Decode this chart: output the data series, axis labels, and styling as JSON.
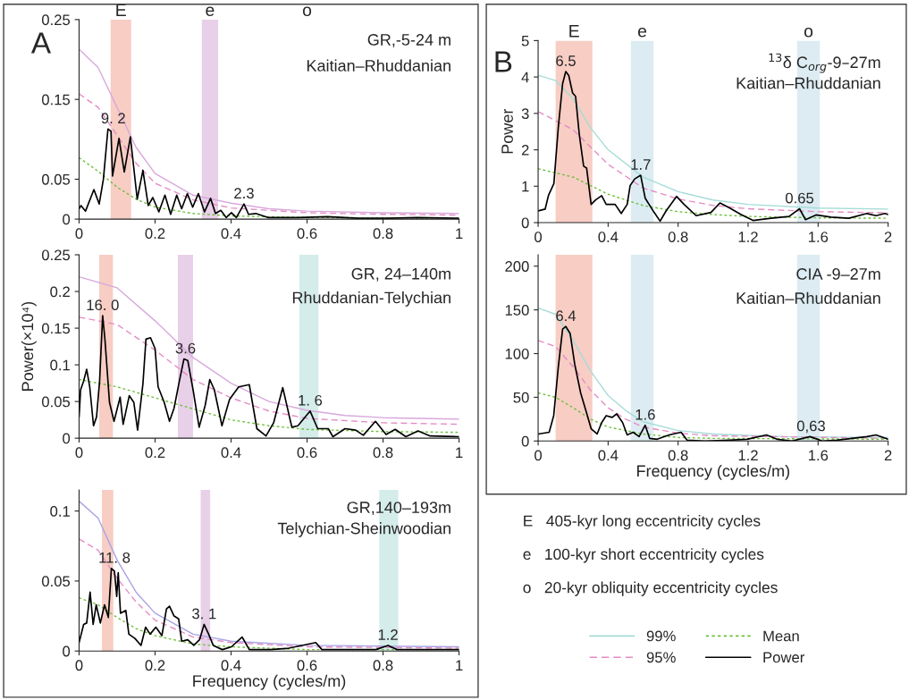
{
  "chart_data": [
    {
      "type": "line",
      "title": "GR,-5-24 m",
      "subtitle": "Kaitian–Rhuddanian",
      "xlim": [
        0,
        1
      ],
      "xticks": [
        0,
        0.2,
        0.4,
        0.6,
        0.8,
        1
      ],
      "ylim": [
        0,
        0.25
      ],
      "yticks": [
        0,
        0.05,
        0.15,
        0.25
      ],
      "grid": false,
      "bands": [
        {
          "axis": "x",
          "from": 0.083,
          "to": 0.137,
          "label": "E",
          "color": "#f7cdc4"
        },
        {
          "axis": "x",
          "from": 0.323,
          "to": 0.366,
          "label": "e",
          "color": "#e8d0e8"
        }
      ],
      "annotations": [
        "A",
        "o",
        {
          "text": "9. 2",
          "x": 0.09,
          "y": 0.113
        },
        {
          "text": "2.3",
          "x": 0.434,
          "y": 0.019
        }
      ],
      "series": [
        {
          "color": "#d8a8dc",
          "line_style": "solid",
          "x": [
            0,
            0.05,
            0.1,
            0.15,
            0.2,
            0.3,
            0.4,
            0.5,
            0.6,
            0.8,
            1
          ],
          "values": [
            0.213,
            0.19,
            0.14,
            0.09,
            0.057,
            0.03,
            0.02,
            0.013,
            0.01,
            0.008,
            0.007
          ]
        },
        {
          "color": "#e48cc4",
          "line_style": "dashed",
          "x": [
            0,
            0.05,
            0.1,
            0.15,
            0.2,
            0.3,
            0.4,
            0.6,
            0.8,
            1
          ],
          "values": [
            0.157,
            0.14,
            0.105,
            0.07,
            0.045,
            0.024,
            0.014,
            0.008,
            0.006,
            0.005
          ]
        },
        {
          "color": "#6cbf3a",
          "line_style": "dotted",
          "x": [
            0,
            0.05,
            0.1,
            0.15,
            0.2,
            0.3,
            0.4,
            0.6,
            1
          ],
          "values": [
            0.077,
            0.06,
            0.04,
            0.025,
            0.015,
            0.007,
            0.004,
            0.002,
            0.001
          ]
        },
        {
          "color": "#000000",
          "line_style": "solid",
          "x": [
            0,
            0.005,
            0.017,
            0.039,
            0.053,
            0.064,
            0.076,
            0.084,
            0.088,
            0.105,
            0.119,
            0.135,
            0.153,
            0.168,
            0.182,
            0.194,
            0.21,
            0.226,
            0.241,
            0.257,
            0.27,
            0.285,
            0.299,
            0.314,
            0.33,
            0.346,
            0.359,
            0.373,
            0.387,
            0.401,
            0.414,
            0.434,
            0.446,
            0.465,
            0.497,
            0.575,
            0.654,
            0.733,
            0.811,
            0.89,
            1
          ],
          "values": [
            0.013,
            0.017,
            0.01,
            0.037,
            0.019,
            0.05,
            0.113,
            0.11,
            0.054,
            0.101,
            0.059,
            0.103,
            0.025,
            0.061,
            0.017,
            0.027,
            0.009,
            0.03,
            0.006,
            0.03,
            0.013,
            0.032,
            0.015,
            0.032,
            0.009,
            0.026,
            0.007,
            0.011,
            0.002,
            0.008,
            0.002,
            0.019,
            0.006,
            0.007,
            0.002,
            0.002,
            0.003,
            0.001,
            0.001,
            0.002,
            0.001
          ]
        }
      ]
    },
    {
      "type": "line",
      "title": "GR, 24–140m",
      "subtitle": "Rhuddanian-Telychian",
      "ylabel": "Power(×10⁴)",
      "xlim": [
        0,
        1
      ],
      "xticks": [
        0,
        0.2,
        0.4,
        0.6,
        0.8,
        1
      ],
      "ylim": [
        0,
        0.25
      ],
      "yticks": [
        0,
        0.05,
        0.1,
        0.15,
        0.2,
        0.25
      ],
      "grid": false,
      "bands": [
        {
          "axis": "x",
          "from": 0.053,
          "to": 0.089,
          "color": "#f7cdc4"
        },
        {
          "axis": "x",
          "from": 0.26,
          "to": 0.3,
          "color": "#e8d0e8"
        },
        {
          "axis": "x",
          "from": 0.58,
          "to": 0.63,
          "color": "#d4ecea"
        }
      ],
      "annotations": [
        {
          "text": "16. 0",
          "x": 0.062,
          "y": 0.167
        },
        {
          "text": "3.6",
          "x": 0.28,
          "y": 0.108
        },
        {
          "text": "1. 6",
          "x": 0.608,
          "y": 0.037
        }
      ],
      "series": [
        {
          "color": "#d8a8dc",
          "line_style": "solid",
          "x": [
            0,
            0.1,
            0.2,
            0.3,
            0.4,
            0.5,
            0.6,
            0.7,
            0.8,
            1
          ],
          "values": [
            0.22,
            0.205,
            0.16,
            0.11,
            0.075,
            0.05,
            0.038,
            0.031,
            0.028,
            0.026
          ]
        },
        {
          "color": "#e48cc4",
          "line_style": "dashed",
          "x": [
            0,
            0.1,
            0.2,
            0.3,
            0.4,
            0.5,
            0.6,
            0.8,
            1
          ],
          "values": [
            0.165,
            0.155,
            0.12,
            0.08,
            0.055,
            0.037,
            0.027,
            0.021,
            0.019
          ]
        },
        {
          "color": "#6cbf3a",
          "line_style": "dotted",
          "x": [
            0,
            0.1,
            0.2,
            0.3,
            0.4,
            0.5,
            0.6,
            0.8,
            1
          ],
          "values": [
            0.08,
            0.07,
            0.055,
            0.04,
            0.025,
            0.017,
            0.012,
            0.009,
            0.008
          ]
        },
        {
          "color": "#000000",
          "line_style": "solid",
          "x": [
            0,
            0.004,
            0.012,
            0.02,
            0.028,
            0.038,
            0.046,
            0.054,
            0.062,
            0.068,
            0.08,
            0.092,
            0.108,
            0.116,
            0.132,
            0.144,
            0.154,
            0.168,
            0.176,
            0.188,
            0.2,
            0.208,
            0.224,
            0.238,
            0.25,
            0.264,
            0.276,
            0.286,
            0.3,
            0.316,
            0.332,
            0.344,
            0.356,
            0.376,
            0.396,
            0.42,
            0.448,
            0.468,
            0.492,
            0.512,
            0.536,
            0.56,
            0.576,
            0.608,
            0.628,
            0.656,
            0.668,
            0.7,
            0.728,
            0.748,
            0.78,
            0.808,
            0.832,
            0.86,
            0.892,
            0.924,
            1
          ],
          "values": [
            0.029,
            0.066,
            0.078,
            0.094,
            0.07,
            0.017,
            0.029,
            0.078,
            0.167,
            0.135,
            0.049,
            0.023,
            0.056,
            0.019,
            0.058,
            0.049,
            0.011,
            0.074,
            0.135,
            0.137,
            0.122,
            0.07,
            0.049,
            0.023,
            0.041,
            0.078,
            0.108,
            0.106,
            0.066,
            0.015,
            0.045,
            0.08,
            0.066,
            0.017,
            0.053,
            0.07,
            0.073,
            0.013,
            0.003,
            0.021,
            0.069,
            0.015,
            0.017,
            0.037,
            0.013,
            0.013,
            0.002,
            0.013,
            0.011,
            0.004,
            0.023,
            0.005,
            0.012,
            0.002,
            0.01,
            0.003,
            0.002
          ]
        }
      ]
    },
    {
      "type": "line",
      "title": "GR,140–193m",
      "subtitle": "Telychian-Sheinwoodian",
      "xlabel": "Frequency (cycles/m)",
      "xlim": [
        0,
        1
      ],
      "xticks": [
        0,
        0.2,
        0.4,
        0.6,
        0.8,
        1
      ],
      "ylim": [
        0,
        0.115
      ],
      "yticks": [
        0,
        0.05,
        0.1
      ],
      "grid": false,
      "bands": [
        {
          "axis": "x",
          "from": 0.06,
          "to": 0.09,
          "color": "#f7cdc4"
        },
        {
          "axis": "x",
          "from": 0.32,
          "to": 0.345,
          "color": "#e8d0e8"
        },
        {
          "axis": "x",
          "from": 0.79,
          "to": 0.84,
          "color": "#d4ecea"
        }
      ],
      "annotations": [
        {
          "text": "11. 8",
          "x": 0.093,
          "y": 0.059
        },
        {
          "text": "3. 1",
          "x": 0.329,
          "y": 0.019
        },
        {
          "text": "1.2",
          "x": 0.813,
          "y": 0.004
        }
      ],
      "series": [
        {
          "color": "#a9a3e3",
          "line_style": "solid",
          "x": [
            0,
            0.05,
            0.1,
            0.15,
            0.2,
            0.3,
            0.4,
            0.6,
            1
          ],
          "values": [
            0.107,
            0.095,
            0.065,
            0.042,
            0.027,
            0.012,
            0.007,
            0.004,
            0.003
          ]
        },
        {
          "color": "#e48cc4",
          "line_style": "dashed",
          "x": [
            0,
            0.05,
            0.1,
            0.15,
            0.2,
            0.3,
            0.4,
            0.6,
            1
          ],
          "values": [
            0.08,
            0.072,
            0.052,
            0.035,
            0.022,
            0.01,
            0.006,
            0.003,
            0.002
          ]
        },
        {
          "color": "#6cbf3a",
          "line_style": "dotted",
          "x": [
            0,
            0.05,
            0.1,
            0.15,
            0.2,
            0.3,
            0.4,
            0.6,
            1
          ],
          "values": [
            0.038,
            0.033,
            0.024,
            0.016,
            0.011,
            0.005,
            0.003,
            0.001,
            0.001
          ]
        },
        {
          "color": "#000000",
          "line_style": "solid",
          "x": [
            0,
            0.012,
            0.02,
            0.029,
            0.037,
            0.045,
            0.056,
            0.067,
            0.077,
            0.085,
            0.093,
            0.099,
            0.103,
            0.109,
            0.123,
            0.131,
            0.147,
            0.163,
            0.175,
            0.187,
            0.202,
            0.218,
            0.23,
            0.238,
            0.25,
            0.262,
            0.27,
            0.286,
            0.302,
            0.317,
            0.329,
            0.341,
            0.353,
            0.377,
            0.401,
            0.429,
            0.448,
            0.504,
            0.552,
            0.623,
            0.639,
            0.702,
            0.781,
            0.813,
            0.837,
            0.9,
            1
          ],
          "values": [
            0.006,
            0.019,
            0.02,
            0.042,
            0.019,
            0.033,
            0.02,
            0.033,
            0.024,
            0.059,
            0.057,
            0.039,
            0.056,
            0.027,
            0.029,
            0.012,
            0.009,
            0.004,
            0.017,
            0.012,
            0.017,
            0.011,
            0.03,
            0.032,
            0.025,
            0.023,
            0.007,
            0.008,
            0.004,
            0.008,
            0.019,
            0.012,
            0.004,
            0.001,
            0.003,
            0.01,
            0.001,
            0.001,
            0.002,
            0.006,
            0.001,
            0.001,
            0.001,
            0.004,
            0.001,
            0.001,
            0.001
          ]
        }
      ]
    },
    {
      "type": "line",
      "title": "$^{13}$δ C$_{org}$-9–27m",
      "subtitle": "Kaitian–Rhuddanian",
      "ylabel": "Power",
      "xlim": [
        0,
        2
      ],
      "xticks": [
        0,
        0.4,
        0.8,
        1.2,
        1.6,
        2
      ],
      "ylim": [
        0,
        5
      ],
      "yticks": [
        0,
        1,
        2,
        3,
        4,
        5
      ],
      "grid": false,
      "bands": [
        {
          "axis": "x",
          "from": 0.1,
          "to": 0.31,
          "label": "E",
          "color": "#f7cdc4"
        },
        {
          "axis": "x",
          "from": 0.53,
          "to": 0.66,
          "label": "e",
          "color": "#dcecf2"
        },
        {
          "axis": "x",
          "from": 1.48,
          "to": 1.61,
          "label": "o",
          "color": "#dcecf2"
        }
      ],
      "annotations": [
        "B",
        {
          "text": "6.5",
          "x": 0.158,
          "y": 4.15
        },
        {
          "text": "1.7",
          "x": 0.586,
          "y": 1.3
        },
        {
          "text": "0.65",
          "x": 1.494,
          "y": 0.38
        }
      ],
      "series": [
        {
          "color": "#a6dcd8",
          "line_style": "solid",
          "x": [
            0,
            0.1,
            0.2,
            0.3,
            0.4,
            0.6,
            0.8,
            1.0,
            1.2,
            1.6,
            2
          ],
          "values": [
            4.05,
            3.9,
            3.4,
            2.6,
            2.0,
            1.25,
            0.85,
            0.62,
            0.5,
            0.4,
            0.37
          ]
        },
        {
          "color": "#e48cc4",
          "line_style": "dashed",
          "x": [
            0,
            0.2,
            0.4,
            0.6,
            0.8,
            1.0,
            1.2,
            1.6,
            2
          ],
          "values": [
            3.05,
            2.55,
            1.6,
            0.95,
            0.65,
            0.47,
            0.38,
            0.3,
            0.27
          ]
        },
        {
          "color": "#6cbf3a",
          "line_style": "dotted",
          "x": [
            0,
            0.2,
            0.4,
            0.6,
            0.8,
            1.0,
            1.2,
            1.6,
            2
          ],
          "values": [
            1.48,
            1.25,
            0.78,
            0.47,
            0.3,
            0.22,
            0.17,
            0.13,
            0.12
          ]
        },
        {
          "color": "#000000",
          "line_style": "solid",
          "x": [
            0,
            0.04,
            0.06,
            0.09,
            0.115,
            0.14,
            0.158,
            0.175,
            0.197,
            0.214,
            0.235,
            0.26,
            0.277,
            0.303,
            0.33,
            0.363,
            0.389,
            0.44,
            0.475,
            0.509,
            0.526,
            0.552,
            0.586,
            0.612,
            0.663,
            0.697,
            0.731,
            0.791,
            0.834,
            0.903,
            0.988,
            1.039,
            1.091,
            1.16,
            1.228,
            1.331,
            1.434,
            1.494,
            1.528,
            1.588,
            1.674,
            1.776,
            1.879,
            1.931,
            1.982,
            2
          ],
          "values": [
            0.32,
            0.37,
            0.76,
            1.07,
            2.6,
            3.82,
            4.15,
            4.04,
            3.56,
            3.47,
            2.43,
            1.55,
            1.5,
            0.5,
            0.63,
            0.74,
            0.5,
            0.5,
            0.25,
            0.5,
            1.02,
            1.2,
            1.3,
            0.67,
            0.28,
            0.04,
            0.32,
            0.72,
            0.5,
            0.19,
            0.28,
            0.54,
            0.41,
            0.22,
            0.06,
            0.12,
            0.17,
            0.38,
            0.08,
            0.21,
            0.15,
            0.12,
            0.25,
            0.19,
            0.25,
            0.22
          ]
        }
      ]
    },
    {
      "type": "line",
      "title": "CIA -9–27m",
      "subtitle": "Kaitian–Rhuddanian",
      "xlabel": "Frequency (cycles/m)",
      "xlim": [
        0,
        2
      ],
      "xticks": [
        0,
        0.4,
        0.8,
        1.2,
        1.6,
        2
      ],
      "ylim": [
        0,
        213
      ],
      "yticks": [
        0,
        50,
        100,
        150,
        200
      ],
      "grid": false,
      "legend": "bottom right",
      "bands": [
        {
          "axis": "x",
          "from": 0.1,
          "to": 0.31,
          "color": "#f7cdc4"
        },
        {
          "axis": "x",
          "from": 0.53,
          "to": 0.66,
          "color": "#dcecf2"
        },
        {
          "axis": "x",
          "from": 1.48,
          "to": 1.61,
          "color": "#dcecf2"
        }
      ],
      "annotations": [
        {
          "text": "6.4",
          "x": 0.158,
          "y": 131
        },
        {
          "text": "1.6",
          "x": 0.612,
          "y": 18
        },
        {
          "text": "0,63",
          "x": 1.56,
          "y": 5
        }
      ],
      "series": [
        {
          "name": "99%",
          "color": "#a6dcd8",
          "line_style": "solid",
          "x": [
            0,
            0.1,
            0.2,
            0.3,
            0.4,
            0.5,
            0.6,
            0.8,
            1.0,
            1.4,
            2
          ],
          "values": [
            152,
            145,
            115,
            80,
            52,
            35,
            22,
            12,
            8,
            5,
            4
          ]
        },
        {
          "name": "95%",
          "color": "#e48cc4",
          "line_style": "dashed",
          "x": [
            0,
            0.1,
            0.2,
            0.3,
            0.4,
            0.5,
            0.6,
            0.8,
            1,
            2
          ],
          "values": [
            115,
            108,
            85,
            58,
            38,
            25,
            16,
            9,
            6,
            3
          ]
        },
        {
          "name": "Mean",
          "color": "#6cbf3a",
          "line_style": "dotted",
          "x": [
            0,
            0.1,
            0.2,
            0.3,
            0.4,
            0.6,
            0.8,
            1,
            2
          ],
          "values": [
            55,
            50,
            38,
            25,
            16,
            8,
            4,
            3,
            2
          ]
        },
        {
          "name": "Power",
          "color": "#000000",
          "line_style": "solid",
          "x": [
            0,
            0.063,
            0.089,
            0.115,
            0.14,
            0.158,
            0.183,
            0.209,
            0.243,
            0.277,
            0.303,
            0.337,
            0.363,
            0.389,
            0.423,
            0.449,
            0.483,
            0.509,
            0.543,
            0.577,
            0.612,
            0.637,
            0.68,
            0.749,
            0.817,
            0.851,
            0.954,
            1.091,
            1.194,
            1.305,
            1.365,
            1.451,
            1.554,
            1.623,
            1.708,
            1.879,
            1.931,
            2
          ],
          "values": [
            8,
            10,
            29,
            84,
            128,
            131,
            123,
            88,
            55,
            32,
            14,
            8,
            21,
            29,
            27,
            31,
            21,
            7,
            10,
            5,
            18,
            3,
            2,
            7,
            10,
            1,
            0,
            1,
            2,
            7,
            2,
            0,
            5,
            0,
            1,
            5,
            7,
            2
          ]
        }
      ]
    },
    {
      "type": "other",
      "annotations": [
        "E   405-kyr long eccentricity cycles",
        "e   100-kyr short eccentricity cycles",
        "o   20-kyr obliquity eccentricity cycles"
      ]
    }
  ]
}
